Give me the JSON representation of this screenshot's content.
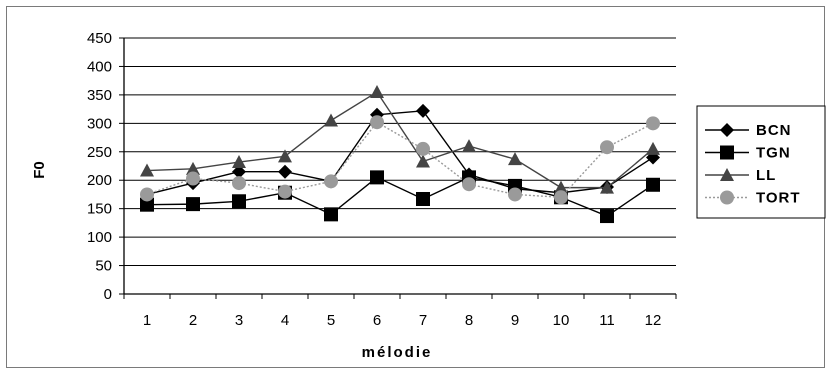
{
  "chart_data": {
    "type": "line",
    "xlabel": "mélodie",
    "ylabel": "F0",
    "categories": [
      "1",
      "2",
      "3",
      "4",
      "5",
      "6",
      "7",
      "8",
      "9",
      "10",
      "11",
      "12"
    ],
    "ylim": [
      0,
      450
    ],
    "yticks": [
      "0",
      "50",
      "100",
      "150",
      "200",
      "250",
      "300",
      "350",
      "400",
      "450"
    ],
    "grid": true,
    "legend": "right",
    "series": [
      {
        "name": "BCN",
        "marker": "diamond",
        "color": "#000000",
        "dash": "",
        "values": [
          175,
          195,
          215,
          215,
          198,
          315,
          322,
          210,
          185,
          178,
          188,
          240
        ]
      },
      {
        "name": "TGN",
        "marker": "square",
        "color": "#000000",
        "dash": "",
        "values": [
          157,
          158,
          163,
          178,
          140,
          205,
          167,
          205,
          190,
          170,
          137,
          192
        ]
      },
      {
        "name": "LL",
        "marker": "triangle",
        "color": "#444444",
        "dash": "",
        "values": [
          217,
          220,
          232,
          242,
          305,
          355,
          233,
          260,
          237,
          187,
          187,
          255
        ]
      },
      {
        "name": "TORT",
        "marker": "circle",
        "color": "#9a9a9a",
        "dash": "2,2",
        "values": [
          175,
          203,
          195,
          180,
          198,
          302,
          255,
          193,
          175,
          170,
          258,
          300
        ]
      }
    ]
  }
}
